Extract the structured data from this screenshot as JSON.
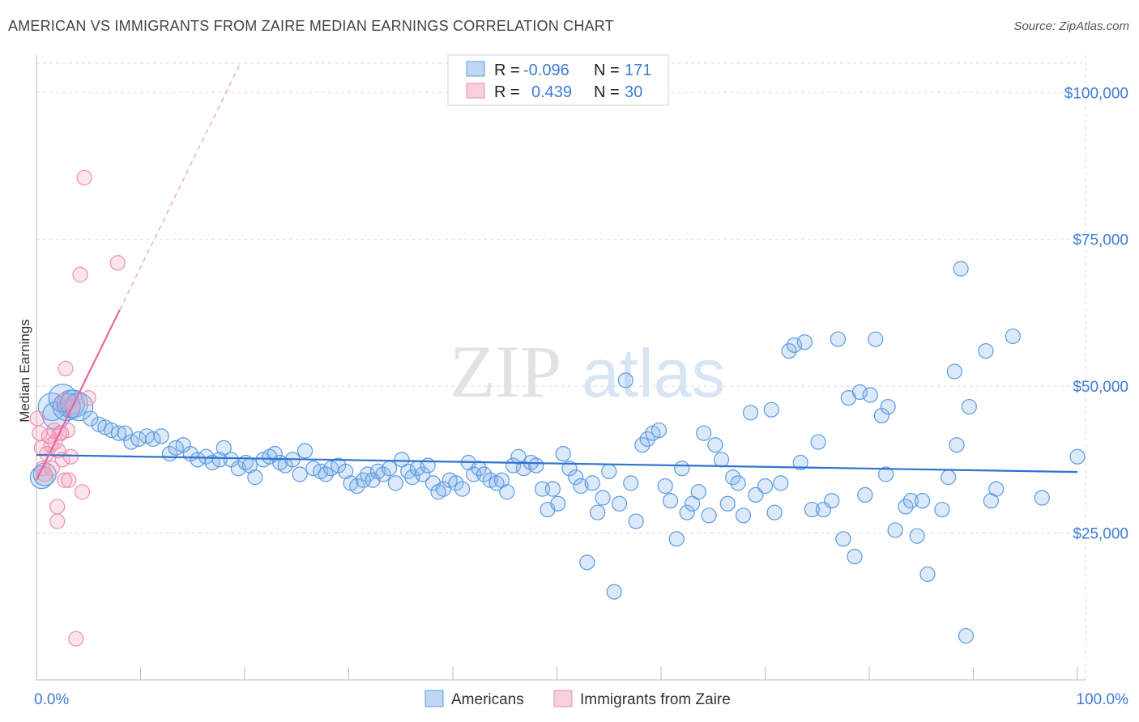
{
  "title": "AMERICAN VS IMMIGRANTS FROM ZAIRE MEDIAN EARNINGS CORRELATION CHART",
  "source": "Source: ZipAtlas.com",
  "watermark": {
    "zip": "ZIP",
    "atlas": "atlas"
  },
  "colors": {
    "americans": "#5b9be0",
    "americans_fill": "rgba(130,176,232,0.28)",
    "zaire": "#ee8fb0",
    "zaire_fill": "rgba(240,160,190,0.28)",
    "blue_line": "#2f72cf",
    "pink_line": "#e8679a",
    "tick_text": "#3d7bd6",
    "grid": "#dddddd"
  },
  "legend": {
    "r_label": "R =",
    "n_label": "N =",
    "rows": [
      {
        "series": "Americans",
        "r": "-0.096",
        "n": "171"
      },
      {
        "series": "Immigrants from Zaire",
        "r": "0.439",
        "n": "30"
      }
    ]
  },
  "chart_data": {
    "type": "scatter",
    "title": "AMERICAN VS IMMIGRANTS FROM ZAIRE MEDIAN EARNINGS CORRELATION CHART",
    "xlabel": "",
    "ylabel": "Median Earnings",
    "xlim": [
      0,
      100
    ],
    "ylim": [
      0,
      105000
    ],
    "x_tick_labels": [
      "0.0%",
      "100.0%"
    ],
    "y_ticks": [
      25000,
      50000,
      75000,
      100000
    ],
    "y_tick_labels": [
      "$25,000",
      "$50,000",
      "$75,000",
      "$100,000"
    ],
    "grid": true,
    "legend_position": "top-center",
    "series": [
      {
        "name": "Americans",
        "points": [
          [
            0.5,
            34500
          ],
          [
            0.8,
            35000
          ],
          [
            1.5,
            46500
          ],
          [
            1.9,
            45000
          ],
          [
            2.5,
            48000
          ],
          [
            2.9,
            46500
          ],
          [
            3.3,
            47000
          ],
          [
            3.6,
            47000
          ],
          [
            4.1,
            46500
          ],
          [
            5.2,
            44500
          ],
          [
            6.0,
            43500
          ],
          [
            6.6,
            43000
          ],
          [
            7.2,
            42500
          ],
          [
            7.9,
            42000
          ],
          [
            8.5,
            42000
          ],
          [
            9.1,
            40500
          ],
          [
            9.8,
            41000
          ],
          [
            10.6,
            41500
          ],
          [
            11.2,
            41000
          ],
          [
            12.0,
            41500
          ],
          [
            12.8,
            38500
          ],
          [
            13.4,
            39500
          ],
          [
            14.1,
            40000
          ],
          [
            14.8,
            38500
          ],
          [
            15.5,
            37500
          ],
          [
            16.3,
            38000
          ],
          [
            16.9,
            37000
          ],
          [
            17.6,
            37500
          ],
          [
            18.0,
            39500
          ],
          [
            18.7,
            37500
          ],
          [
            19.4,
            36000
          ],
          [
            20.1,
            37000
          ],
          [
            20.5,
            36500
          ],
          [
            21.0,
            34500
          ],
          [
            21.8,
            37500
          ],
          [
            22.4,
            38000
          ],
          [
            22.9,
            38500
          ],
          [
            23.4,
            37000
          ],
          [
            23.9,
            36500
          ],
          [
            24.6,
            37500
          ],
          [
            25.3,
            35000
          ],
          [
            25.8,
            39000
          ],
          [
            26.6,
            36000
          ],
          [
            27.3,
            35500
          ],
          [
            27.8,
            35000
          ],
          [
            28.3,
            36000
          ],
          [
            29.0,
            36500
          ],
          [
            29.7,
            35500
          ],
          [
            30.2,
            33500
          ],
          [
            30.8,
            33000
          ],
          [
            31.4,
            34000
          ],
          [
            31.8,
            35000
          ],
          [
            32.3,
            34000
          ],
          [
            32.8,
            35500
          ],
          [
            33.3,
            35000
          ],
          [
            33.9,
            36000
          ],
          [
            34.5,
            33500
          ],
          [
            35.1,
            37500
          ],
          [
            35.7,
            35500
          ],
          [
            36.1,
            34500
          ],
          [
            36.6,
            36000
          ],
          [
            37.1,
            35000
          ],
          [
            37.6,
            36500
          ],
          [
            38.1,
            33500
          ],
          [
            38.6,
            32000
          ],
          [
            39.1,
            32500
          ],
          [
            39.7,
            34000
          ],
          [
            40.3,
            33500
          ],
          [
            40.9,
            32500
          ],
          [
            41.5,
            37000
          ],
          [
            42.0,
            35000
          ],
          [
            42.5,
            36000
          ],
          [
            43.0,
            35000
          ],
          [
            43.6,
            34000
          ],
          [
            44.2,
            33500
          ],
          [
            44.7,
            34000
          ],
          [
            45.2,
            32000
          ],
          [
            45.8,
            36500
          ],
          [
            46.3,
            38000
          ],
          [
            46.8,
            36000
          ],
          [
            47.5,
            37000
          ],
          [
            48.0,
            36500
          ],
          [
            48.6,
            32500
          ],
          [
            49.1,
            29000
          ],
          [
            49.6,
            32500
          ],
          [
            50.1,
            30000
          ],
          [
            50.6,
            38500
          ],
          [
            51.2,
            36000
          ],
          [
            51.8,
            34500
          ],
          [
            52.3,
            33000
          ],
          [
            52.9,
            20000
          ],
          [
            53.4,
            33500
          ],
          [
            53.9,
            28500
          ],
          [
            54.4,
            31000
          ],
          [
            55.0,
            35500
          ],
          [
            55.5,
            15000
          ],
          [
            56.0,
            30000
          ],
          [
            56.6,
            51000
          ],
          [
            57.1,
            33500
          ],
          [
            57.6,
            27000
          ],
          [
            58.2,
            40000
          ],
          [
            58.7,
            41000
          ],
          [
            59.2,
            42000
          ],
          [
            59.8,
            42500
          ],
          [
            60.4,
            33000
          ],
          [
            60.9,
            30500
          ],
          [
            61.5,
            24000
          ],
          [
            62.0,
            36000
          ],
          [
            62.5,
            28500
          ],
          [
            63.0,
            30000
          ],
          [
            63.6,
            32000
          ],
          [
            64.1,
            42000
          ],
          [
            64.6,
            28000
          ],
          [
            65.2,
            40000
          ],
          [
            65.8,
            37500
          ],
          [
            66.4,
            30000
          ],
          [
            66.9,
            34500
          ],
          [
            67.4,
            33500
          ],
          [
            67.9,
            28000
          ],
          [
            68.6,
            45500
          ],
          [
            69.1,
            31500
          ],
          [
            70.0,
            33000
          ],
          [
            70.6,
            46000
          ],
          [
            70.9,
            28500
          ],
          [
            71.5,
            33500
          ],
          [
            72.3,
            56000
          ],
          [
            72.8,
            57000
          ],
          [
            73.4,
            37000
          ],
          [
            73.8,
            57500
          ],
          [
            74.5,
            29000
          ],
          [
            75.1,
            40500
          ],
          [
            75.6,
            29000
          ],
          [
            76.4,
            30500
          ],
          [
            77.0,
            58000
          ],
          [
            77.5,
            24000
          ],
          [
            78.0,
            48000
          ],
          [
            78.6,
            21000
          ],
          [
            79.1,
            49000
          ],
          [
            79.6,
            31500
          ],
          [
            80.1,
            48500
          ],
          [
            80.6,
            58000
          ],
          [
            81.2,
            45000
          ],
          [
            81.6,
            35000
          ],
          [
            81.8,
            46500
          ],
          [
            82.5,
            25500
          ],
          [
            83.5,
            29500
          ],
          [
            84.0,
            30500
          ],
          [
            84.6,
            24500
          ],
          [
            85.1,
            30500
          ],
          [
            85.6,
            18000
          ],
          [
            87.0,
            29000
          ],
          [
            87.6,
            34500
          ],
          [
            88.2,
            52500
          ],
          [
            88.4,
            40000
          ],
          [
            88.8,
            70000
          ],
          [
            89.3,
            7500
          ],
          [
            89.6,
            46500
          ],
          [
            91.2,
            56000
          ],
          [
            91.7,
            30500
          ],
          [
            92.2,
            32500
          ],
          [
            93.8,
            58500
          ],
          [
            96.6,
            31000
          ],
          [
            100.0,
            38000
          ]
        ]
      },
      {
        "name": "Immigrants from Zaire",
        "points": [
          [
            0.1,
            44500
          ],
          [
            0.3,
            42000
          ],
          [
            0.5,
            39500
          ],
          [
            0.6,
            36000
          ],
          [
            0.8,
            35000
          ],
          [
            1.0,
            38500
          ],
          [
            1.2,
            41500
          ],
          [
            1.4,
            40000
          ],
          [
            1.5,
            36000
          ],
          [
            1.7,
            42500
          ],
          [
            1.8,
            40500
          ],
          [
            2.0,
            29500
          ],
          [
            2.0,
            27000
          ],
          [
            2.1,
            39000
          ],
          [
            2.2,
            42000
          ],
          [
            2.4,
            42000
          ],
          [
            2.5,
            37500
          ],
          [
            2.7,
            47500
          ],
          [
            2.7,
            34000
          ],
          [
            2.8,
            53000
          ],
          [
            3.0,
            42500
          ],
          [
            3.1,
            34000
          ],
          [
            3.3,
            38000
          ],
          [
            3.5,
            46500
          ],
          [
            3.8,
            7000
          ],
          [
            4.2,
            69000
          ],
          [
            4.4,
            32000
          ],
          [
            4.6,
            85500
          ],
          [
            5.0,
            48000
          ],
          [
            7.8,
            71000
          ]
        ]
      }
    ],
    "trend_lines": [
      {
        "series": "Americans",
        "from": [
          0,
          38300
        ],
        "to": [
          100,
          35400
        ]
      },
      {
        "series": "Immigrants from Zaire",
        "from": [
          0,
          34000
        ],
        "to": [
          8.0,
          63000
        ]
      }
    ]
  },
  "bottom_legend": [
    "Americans",
    "Immigrants from Zaire"
  ]
}
